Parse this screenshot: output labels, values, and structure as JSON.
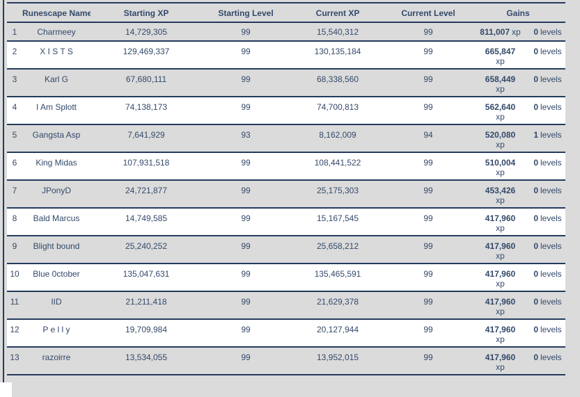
{
  "page": {
    "background_color": "#dbdbdb",
    "border_color": "#243a5e",
    "text_color": "#33496a",
    "even_row_color": "#ffffff"
  },
  "table": {
    "headers": {
      "name": "Runescape Name",
      "starting_xp": "Starting XP",
      "starting_level": "Starting Level",
      "current_xp": "Current XP",
      "current_level": "Current Level",
      "gains": "Gains"
    },
    "rows": [
      {
        "rank": "1",
        "name": "Charmeey",
        "starting_xp": "14,729,305",
        "starting_level": "99",
        "current_xp": "15,540,312",
        "current_level": "99",
        "gains_xp": "811,007",
        "gains_xp_unit": "xp",
        "gains_xp_inline": true,
        "gains_levels": "0",
        "gains_levels_unit": "levels"
      },
      {
        "rank": "2",
        "name": "X I S T S",
        "starting_xp": "129,469,337",
        "starting_level": "99",
        "current_xp": "130,135,184",
        "current_level": "99",
        "gains_xp": "665,847",
        "gains_xp_unit": "xp",
        "gains_xp_inline": false,
        "gains_levels": "0",
        "gains_levels_unit": "levels"
      },
      {
        "rank": "3",
        "name": "Karl G",
        "starting_xp": "67,680,111",
        "starting_level": "99",
        "current_xp": "68,338,560",
        "current_level": "99",
        "gains_xp": "658,449",
        "gains_xp_unit": "xp",
        "gains_xp_inline": false,
        "gains_levels": "0",
        "gains_levels_unit": "levels"
      },
      {
        "rank": "4",
        "name": "I Am Splott",
        "starting_xp": "74,138,173",
        "starting_level": "99",
        "current_xp": "74,700,813",
        "current_level": "99",
        "gains_xp": "562,640",
        "gains_xp_unit": "xp",
        "gains_xp_inline": false,
        "gains_levels": "0",
        "gains_levels_unit": "levels"
      },
      {
        "rank": "5",
        "name": "Gangsta Asp",
        "starting_xp": "7,641,929",
        "starting_level": "93",
        "current_xp": "8,162,009",
        "current_level": "94",
        "gains_xp": "520,080",
        "gains_xp_unit": "xp",
        "gains_xp_inline": false,
        "gains_levels": "1",
        "gains_levels_unit": "levels"
      },
      {
        "rank": "6",
        "name": "King Midas",
        "starting_xp": "107,931,518",
        "starting_level": "99",
        "current_xp": "108,441,522",
        "current_level": "99",
        "gains_xp": "510,004",
        "gains_xp_unit": "xp",
        "gains_xp_inline": false,
        "gains_levels": "0",
        "gains_levels_unit": "levels"
      },
      {
        "rank": "7",
        "name": "JPonyD",
        "starting_xp": "24,721,877",
        "starting_level": "99",
        "current_xp": "25,175,303",
        "current_level": "99",
        "gains_xp": "453,426",
        "gains_xp_unit": "xp",
        "gains_xp_inline": false,
        "gains_levels": "0",
        "gains_levels_unit": "levels"
      },
      {
        "rank": "8",
        "name": "Bald Marcus",
        "starting_xp": "14,749,585",
        "starting_level": "99",
        "current_xp": "15,167,545",
        "current_level": "99",
        "gains_xp": "417,960",
        "gains_xp_unit": "xp",
        "gains_xp_inline": false,
        "gains_levels": "0",
        "gains_levels_unit": "levels"
      },
      {
        "rank": "9",
        "name": "Blight bound",
        "starting_xp": "25,240,252",
        "starting_level": "99",
        "current_xp": "25,658,212",
        "current_level": "99",
        "gains_xp": "417,960",
        "gains_xp_unit": "xp",
        "gains_xp_inline": false,
        "gains_levels": "0",
        "gains_levels_unit": "levels"
      },
      {
        "rank": "10",
        "name": "Blue 0ctober",
        "starting_xp": "135,047,631",
        "starting_level": "99",
        "current_xp": "135,465,591",
        "current_level": "99",
        "gains_xp": "417,960",
        "gains_xp_unit": "xp",
        "gains_xp_inline": false,
        "gains_levels": "0",
        "gains_levels_unit": "levels"
      },
      {
        "rank": "11",
        "name": "IID",
        "starting_xp": "21,211,418",
        "starting_level": "99",
        "current_xp": "21,629,378",
        "current_level": "99",
        "gains_xp": "417,960",
        "gains_xp_unit": "xp",
        "gains_xp_inline": false,
        "gains_levels": "0",
        "gains_levels_unit": "levels"
      },
      {
        "rank": "12",
        "name": "P e l l y",
        "starting_xp": "19,709,984",
        "starting_level": "99",
        "current_xp": "20,127,944",
        "current_level": "99",
        "gains_xp": "417,960",
        "gains_xp_unit": "xp",
        "gains_xp_inline": false,
        "gains_levels": "0",
        "gains_levels_unit": "levels"
      },
      {
        "rank": "13",
        "name": "razoirre",
        "starting_xp": "13,534,055",
        "starting_level": "99",
        "current_xp": "13,952,015",
        "current_level": "99",
        "gains_xp": "417,960",
        "gains_xp_unit": "xp",
        "gains_xp_inline": false,
        "gains_levels": "0",
        "gains_levels_unit": "levels"
      }
    ]
  }
}
